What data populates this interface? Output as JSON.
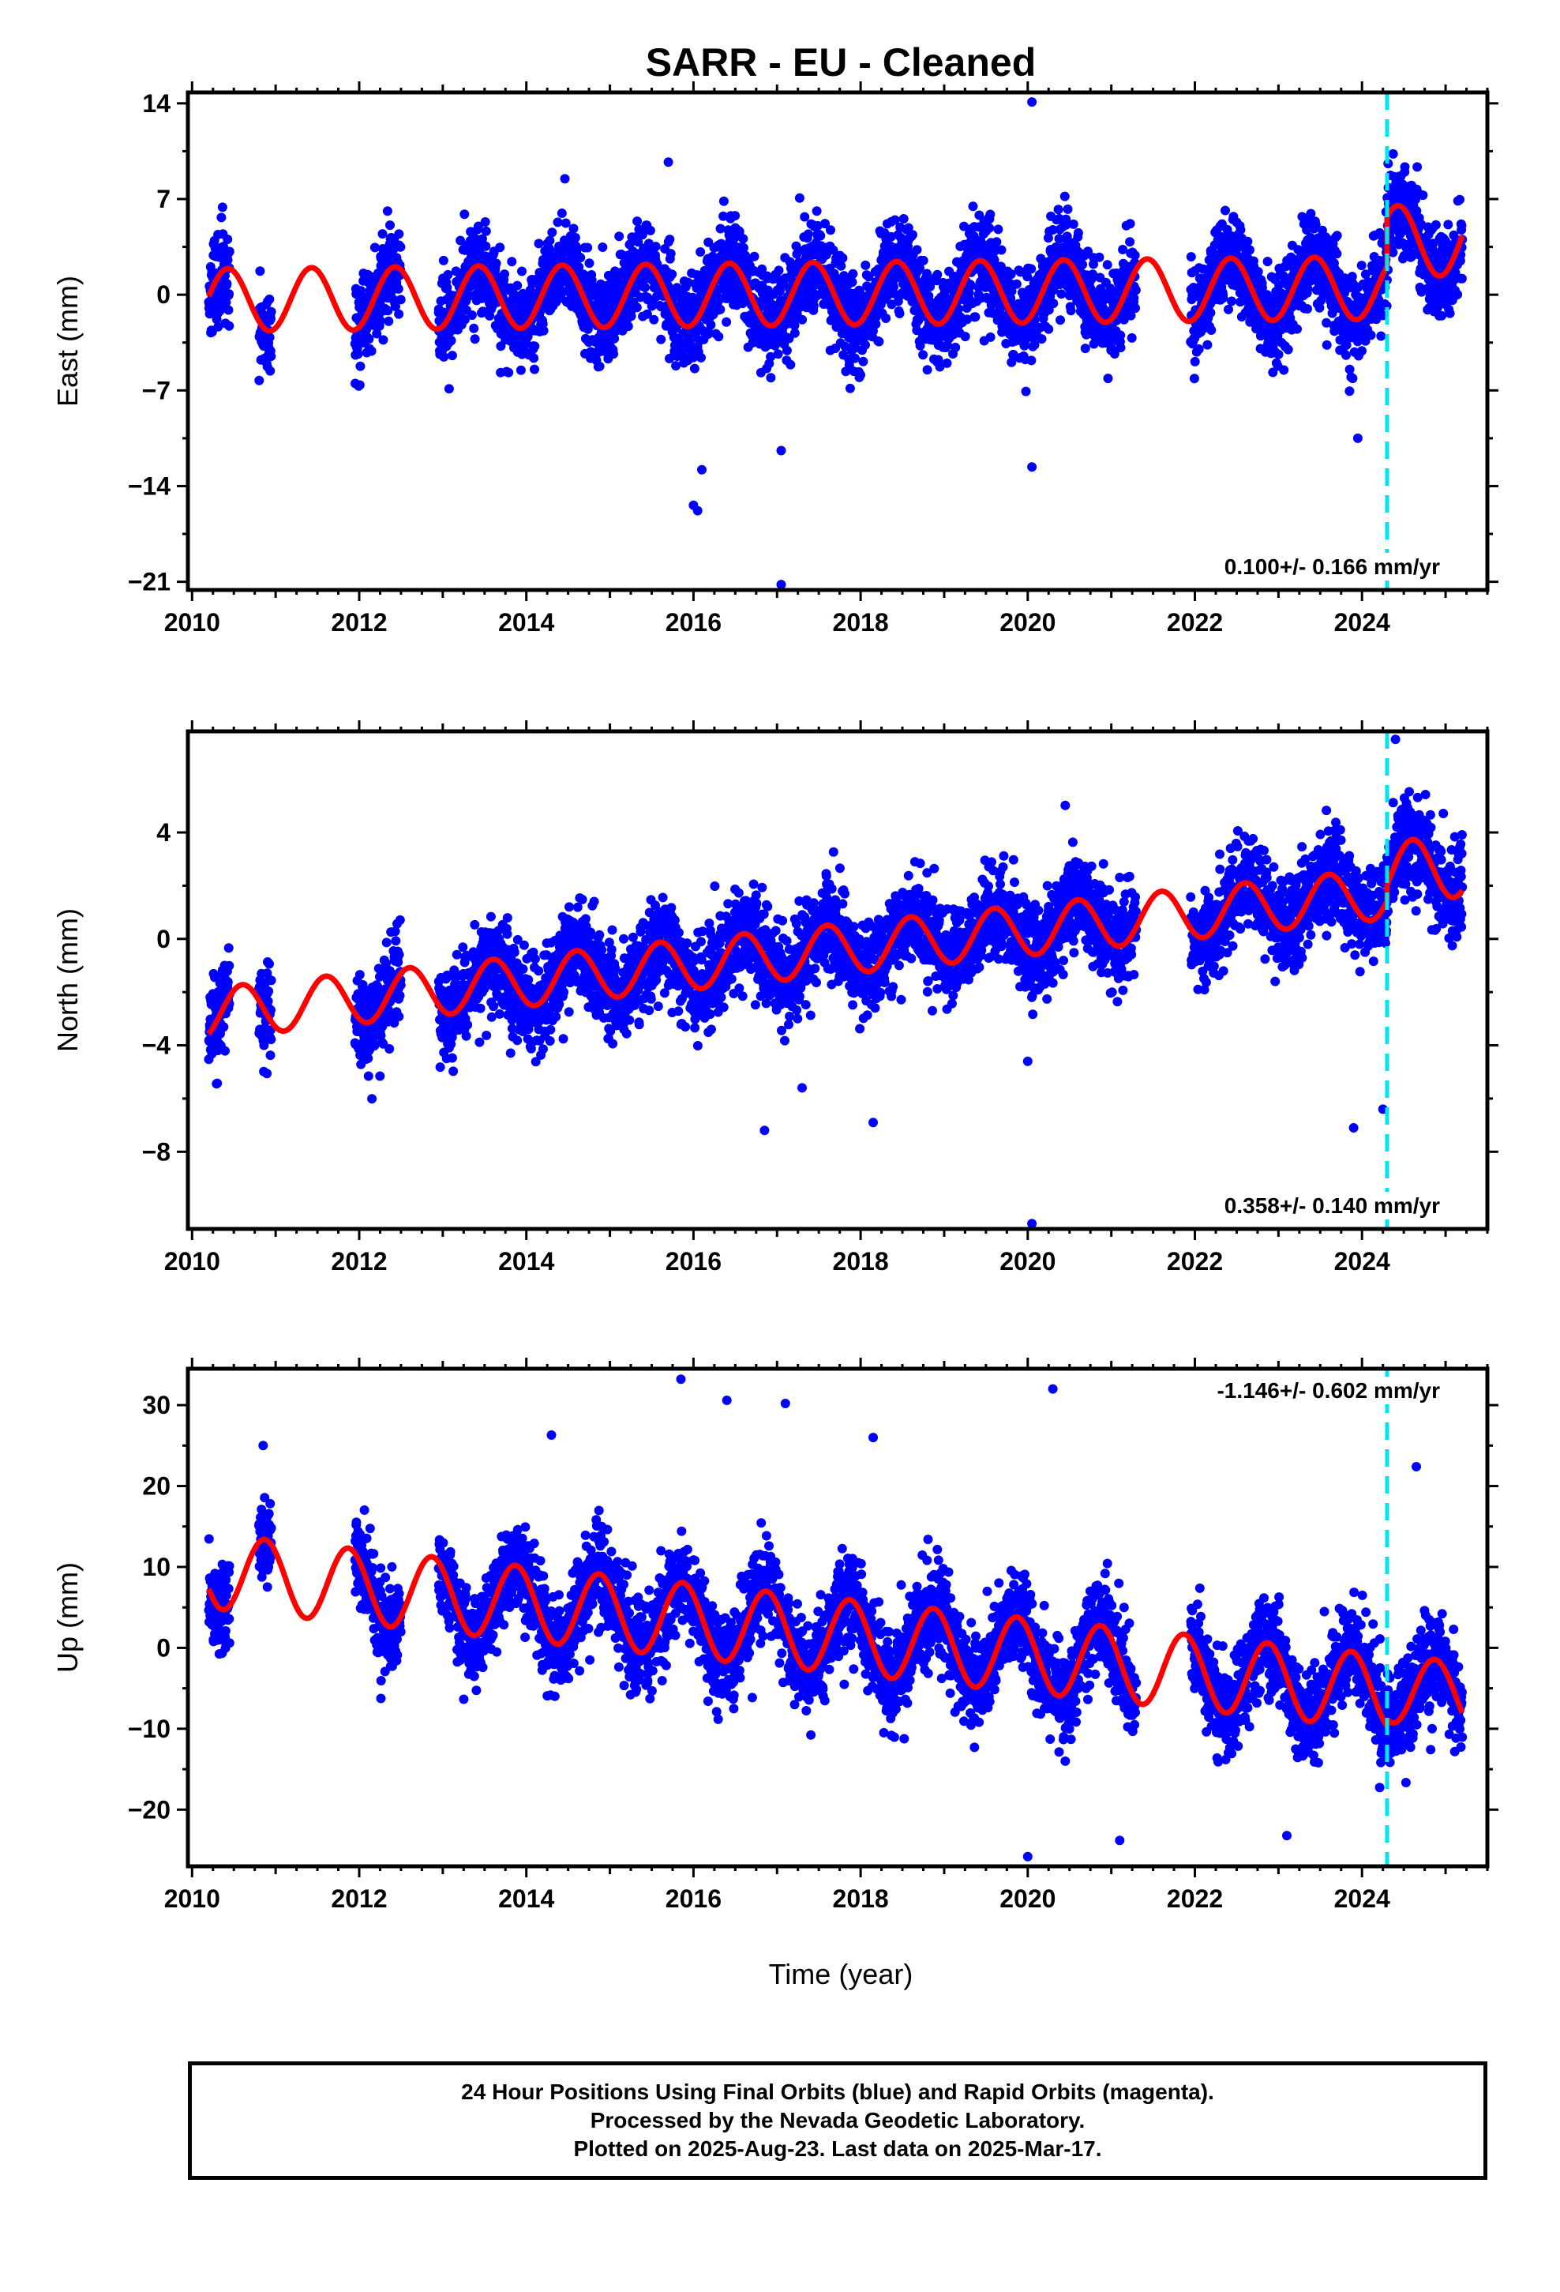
{
  "title": "SARR  - EU - Cleaned",
  "xlabel": "Time (year)",
  "colors": {
    "data": "#0000ff",
    "model": "#ff0000",
    "event": "#00e5ee",
    "frame": "#000000"
  },
  "footer": {
    "line1": "24 Hour Positions Using Final Orbits (blue) and Rapid Orbits (magenta).",
    "line2": "Processed by the Nevada Geodetic Laboratory.",
    "line3": "Plotted on 2025-Aug-23. Last data on 2025-Mar-17."
  },
  "chart_data": [
    {
      "type": "scatter",
      "ylabel": "East (mm)",
      "rate": "0.100+/- 0.166 mm/yr",
      "xlim": [
        2009.95,
        2025.5
      ],
      "ylim": [
        -21.6,
        14.8
      ],
      "xticks": [
        2010,
        2012,
        2014,
        2016,
        2018,
        2020,
        2022,
        2024
      ],
      "yticks": [
        -21,
        -14,
        -7,
        0,
        7,
        14
      ],
      "event_x": 2024.3,
      "data_ranges": [
        [
          2010.2,
          2010.45
        ],
        [
          2010.8,
          2010.95
        ],
        [
          2011.95,
          2012.5
        ],
        [
          2012.95,
          2021.3
        ],
        [
          2021.95,
          2025.2
        ]
      ],
      "model_segments": [
        {
          "x0": 2010.2,
          "x1": 2024.3,
          "y0": -0.4,
          "y1": 0.5,
          "a": 2.3,
          "phase": 0.18
        },
        {
          "x0": 2024.3,
          "x1": 2025.2,
          "y0": 3.9,
          "y1": 4.0,
          "a": 2.6,
          "phase": 0.18
        }
      ],
      "outliers": [
        [
          2017.05,
          -21.2
        ],
        [
          2020.05,
          14.1
        ],
        [
          2016.05,
          -15.8
        ],
        [
          2016.0,
          -15.4
        ],
        [
          2016.1,
          -12.8
        ],
        [
          2017.05,
          -11.4
        ],
        [
          2020.05,
          -12.6
        ],
        [
          2015.7,
          9.7
        ],
        [
          2023.95,
          -10.5
        ]
      ],
      "seed": 11
    },
    {
      "type": "scatter",
      "ylabel": "North (mm)",
      "rate": "0.358+/- 0.140 mm/yr",
      "xlim": [
        2009.95,
        2025.5
      ],
      "ylim": [
        -10.9,
        7.8
      ],
      "xticks": [
        2010,
        2012,
        2014,
        2016,
        2018,
        2020,
        2022,
        2024
      ],
      "yticks": [
        -8,
        -4,
        0,
        4
      ],
      "event_x": 2024.3,
      "data_ranges": [
        [
          2010.2,
          2010.45
        ],
        [
          2010.8,
          2010.95
        ],
        [
          2011.95,
          2012.5
        ],
        [
          2012.95,
          2021.3
        ],
        [
          2021.95,
          2025.2
        ]
      ],
      "model_segments": [
        {
          "x0": 2010.2,
          "x1": 2024.3,
          "y0": -2.8,
          "y1": 1.7,
          "a": 0.95,
          "phase": 0.35
        },
        {
          "x0": 2024.3,
          "x1": 2025.2,
          "y0": 2.4,
          "y1": 2.8,
          "a": 1.2,
          "phase": 0.35
        }
      ],
      "outliers": [
        [
          2020.05,
          -10.7
        ],
        [
          2024.4,
          7.5
        ],
        [
          2016.85,
          -7.2
        ],
        [
          2018.15,
          -6.9
        ],
        [
          2023.9,
          -7.1
        ],
        [
          2017.3,
          -5.6
        ],
        [
          2020.0,
          -4.6
        ],
        [
          2024.25,
          -6.4
        ]
      ],
      "seed": 23
    },
    {
      "type": "scatter",
      "ylabel": "Up (mm)",
      "rate": "-1.146+/- 0.602 mm/yr",
      "xlim": [
        2009.95,
        2025.5
      ],
      "ylim": [
        -27,
        34.5
      ],
      "xticks": [
        2010,
        2012,
        2014,
        2016,
        2018,
        2020,
        2022,
        2024
      ],
      "yticks": [
        -20,
        -10,
        0,
        10,
        20,
        30
      ],
      "event_x": 2024.3,
      "data_ranges": [
        [
          2010.2,
          2010.45
        ],
        [
          2010.8,
          2010.95
        ],
        [
          2011.95,
          2012.5
        ],
        [
          2012.95,
          2021.3
        ],
        [
          2021.95,
          2025.2
        ]
      ],
      "model_segments": [
        {
          "x0": 2010.2,
          "x1": 2024.3,
          "y0": 9.5,
          "y1": -5.5,
          "a": 4.6,
          "phase": 0.62
        },
        {
          "x0": 2024.3,
          "x1": 2025.2,
          "y0": -5.0,
          "y1": -6.0,
          "a": 4.2,
          "phase": 0.62
        }
      ],
      "outliers": [
        [
          2015.85,
          33.2
        ],
        [
          2020.3,
          32.0
        ],
        [
          2016.4,
          30.6
        ],
        [
          2017.1,
          30.2
        ],
        [
          2010.85,
          25.0
        ],
        [
          2014.3,
          26.3
        ],
        [
          2018.15,
          26.0
        ],
        [
          2020.0,
          -25.8
        ],
        [
          2021.1,
          -23.8
        ],
        [
          2023.1,
          -23.2
        ],
        [
          2024.65,
          22.4
        ]
      ],
      "seed": 37
    }
  ]
}
